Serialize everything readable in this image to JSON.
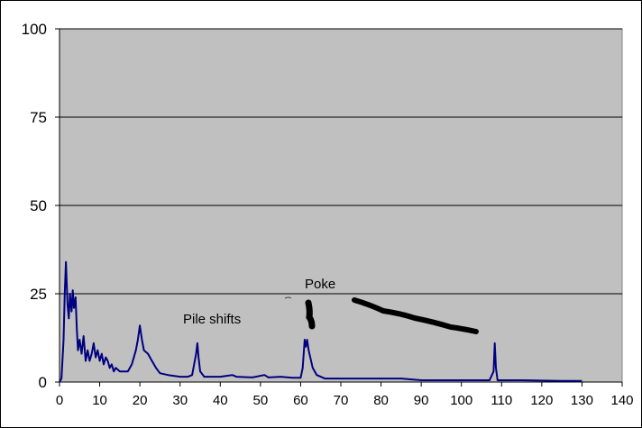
{
  "chart_data": {
    "type": "line",
    "title": "",
    "xlabel": "",
    "ylabel": "",
    "xlim": [
      0,
      140
    ],
    "ylim": [
      0,
      100
    ],
    "x_ticks": [
      "0",
      "10",
      "20",
      "30",
      "40",
      "50",
      "60",
      "70",
      "80",
      "90",
      "100",
      "110",
      "120",
      "130",
      "140"
    ],
    "y_ticks": [
      "0",
      "25",
      "50",
      "75",
      "100"
    ],
    "grid": "horizontal",
    "legend": "none",
    "plot_background": "#c0c0c0",
    "line_color": "#000080",
    "series": [
      {
        "x": [
          0,
          0.5,
          1,
          1.3,
          1.6,
          2,
          2.3,
          2.6,
          3,
          3.3,
          3.6,
          4,
          4.3,
          4.6,
          5,
          5.5,
          6,
          6.5,
          7,
          7.5,
          8,
          8.5,
          9,
          9.5,
          10,
          10.5,
          11,
          11.5,
          12,
          12.5,
          13,
          13.5,
          14,
          15,
          16,
          17,
          18,
          19,
          19.5,
          20,
          20.5,
          21,
          22,
          23,
          24,
          25,
          27,
          30,
          32,
          33,
          34,
          34.3,
          34.6,
          35,
          36,
          40,
          43,
          44,
          48,
          51,
          52,
          55,
          58,
          60,
          60.5,
          61,
          61.3,
          61.6,
          62,
          63,
          64,
          66,
          70,
          75,
          80,
          85,
          90,
          95,
          100,
          105,
          107,
          108,
          108.3,
          108.6,
          109,
          110,
          115,
          120,
          125,
          130
        ],
        "y": [
          0,
          1,
          12,
          25,
          34,
          22,
          18,
          25,
          20,
          26,
          21,
          24,
          15,
          9,
          12,
          8,
          13,
          6,
          9,
          6,
          8,
          11,
          7,
          9,
          6,
          8,
          5,
          7,
          6,
          4,
          5,
          3,
          4,
          3,
          3,
          3,
          5,
          9,
          12,
          16,
          12,
          9,
          8,
          6,
          4,
          2.5,
          2,
          1.5,
          1.5,
          2,
          8,
          11,
          7,
          3,
          1.5,
          1.5,
          2,
          1.5,
          1.3,
          2,
          1.3,
          1.5,
          1.2,
          1.2,
          4,
          12,
          10,
          12,
          9,
          4,
          2,
          1,
          1,
          1,
          1,
          1,
          0.5,
          0.5,
          0.5,
          0.5,
          0.5,
          3,
          11,
          4,
          0.5,
          0.5,
          0.5,
          0.4,
          0.3,
          0.3
        ]
      }
    ],
    "annotations": [
      {
        "text": "Pile shifts"
      },
      {
        "text": "Poke"
      }
    ]
  }
}
